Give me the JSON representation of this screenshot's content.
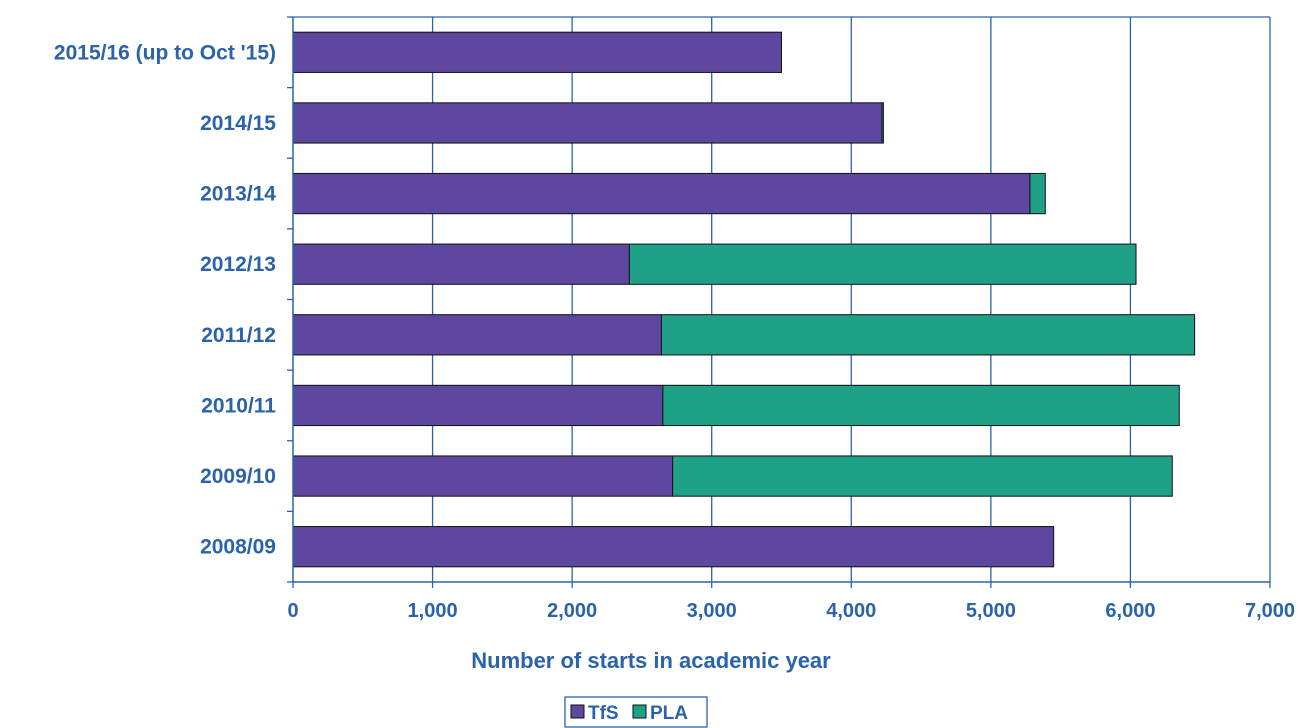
{
  "chart_data": {
    "type": "bar",
    "orientation": "horizontal",
    "stacked": true,
    "title": "",
    "xlabel": "Number of starts in academic year",
    "ylabel": "",
    "xlim": [
      0,
      7000
    ],
    "x_ticks": [
      0,
      1000,
      2000,
      3000,
      4000,
      5000,
      6000,
      7000
    ],
    "x_tick_labels": [
      "0",
      "1,000",
      "2,000",
      "3,000",
      "4,000",
      "5,000",
      "6,000",
      "7,000"
    ],
    "grid": "vertical",
    "legend_position": "bottom",
    "categories": [
      "2015/16 (up to Oct '15)",
      "2014/15",
      "2013/14",
      "2012/13",
      "2011/12",
      "2010/11",
      "2009/10",
      "2008/09"
    ],
    "series": [
      {
        "name": "TfS",
        "color": "#5E479F",
        "values": [
          3500,
          4220,
          5280,
          2410,
          2640,
          2650,
          2720,
          5450
        ]
      },
      {
        "name": "PLA",
        "color": "#1FA187",
        "values": [
          0,
          10,
          110,
          3630,
          3820,
          3700,
          3580,
          0
        ]
      }
    ]
  }
}
